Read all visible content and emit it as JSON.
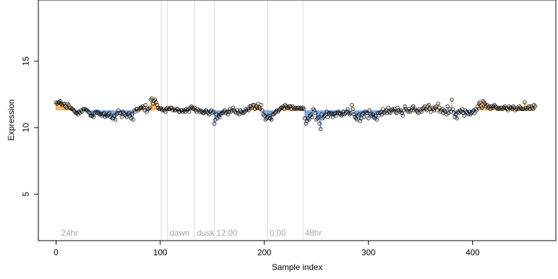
{
  "chart_data": {
    "type": "scatter",
    "xlabel": "Sample index",
    "ylabel": "Expression",
    "xlim": [
      -17,
      480
    ],
    "ylim": [
      1.5,
      19.6
    ],
    "baseline": 11.3,
    "x_ticks": [
      0,
      100,
      200,
      300,
      400
    ],
    "y_ticks": [
      5,
      10,
      15
    ],
    "annotations": [
      {
        "x": 101,
        "label": ""
      },
      {
        "x": 107,
        "label": "dawn"
      },
      {
        "x": 133,
        "label": "dusk"
      },
      {
        "x": 152,
        "label": "12:00"
      },
      {
        "x": 203,
        "label": "0:00"
      },
      {
        "x": 237,
        "label": "48hr"
      },
      {
        "x": 3,
        "label": "24hr"
      }
    ],
    "colors": {
      "above": "#F2B15A",
      "below": "#6CA0DC",
      "point_stroke": "#000000",
      "vline": "#D9D9D9"
    },
    "segments": [
      {
        "start": 0,
        "end": 8,
        "values": [
          11.9,
          11.8,
          11.9,
          11.9,
          12.0,
          11.8,
          11.7,
          11.8,
          11.8
        ]
      },
      {
        "start": 9,
        "end": 30,
        "values": [
          11.6,
          11.5,
          11.8,
          11.7,
          11.5,
          11.5,
          11.4,
          11.4,
          11.3,
          11.2,
          11.1,
          11.1,
          11.0,
          11.2,
          11.1,
          11.3,
          11.2,
          11.4,
          11.4,
          11.4,
          11.3,
          11.3
        ]
      },
      {
        "start": 31,
        "end": 72,
        "values": [
          11.2,
          11.1,
          10.9,
          10.9,
          10.9,
          10.8,
          11.1,
          11.2,
          11.1,
          11.2,
          11.1,
          11.0,
          11.0,
          10.9,
          11.0,
          11.1,
          10.8,
          10.9,
          10.9,
          11.0,
          11.1,
          10.8,
          10.9,
          10.7,
          10.7,
          10.9,
          10.6,
          11.0,
          11.1,
          11.3,
          11.1,
          11.1,
          10.8,
          11.2,
          11.1,
          11.0,
          10.9,
          10.8,
          11.0,
          11.1,
          10.9,
          10.7
        ]
      },
      {
        "start": 73,
        "end": 100,
        "values": [
          11.0,
          10.6,
          11.3,
          11.2,
          11.4,
          11.4,
          11.3,
          11.4,
          11.5,
          11.5,
          11.6,
          11.5,
          11.3,
          11.7,
          11.2,
          11.4,
          11.4,
          11.5,
          12.1,
          12.2,
          11.8,
          12.0,
          12.1,
          11.9,
          11.7,
          11.5,
          11.4,
          11.5
        ]
      },
      {
        "start": 101,
        "end": 145,
        "values": [
          11.4,
          11.3,
          11.4,
          11.3,
          11.2,
          11.4,
          11.5,
          11.4,
          11.4,
          11.5,
          11.5,
          11.3,
          11.4,
          11.3,
          11.3,
          11.4,
          11.4,
          11.2,
          11.2,
          11.3,
          11.3,
          11.2,
          11.3,
          11.2,
          11.4,
          11.3,
          11.4,
          11.2,
          11.5,
          11.6,
          11.5,
          11.4,
          11.5,
          11.3,
          11.2,
          11.4,
          11.3,
          11.2,
          11.3,
          11.2,
          11.1,
          11.1,
          11.2,
          11.3,
          11.2
        ]
      },
      {
        "start": 146,
        "end": 165,
        "values": [
          11.1,
          11.0,
          11.2,
          11.3,
          11.1,
          11.2,
          10.3,
          10.6,
          11.0,
          10.7,
          10.9,
          10.8,
          11.0,
          11.1,
          11.1,
          11.2,
          11.3,
          11.1,
          11.2,
          11.0
        ]
      },
      {
        "start": 166,
        "end": 200,
        "values": [
          11.2,
          11.4,
          11.2,
          11.3,
          11.5,
          11.3,
          11.2,
          11.1,
          11.3,
          11.1,
          11.0,
          11.3,
          11.2,
          11.1,
          11.1,
          11.2,
          11.4,
          11.3,
          11.4,
          11.3,
          11.6,
          11.6,
          11.5,
          11.7,
          11.7,
          11.4,
          11.6,
          11.5,
          11.8,
          11.5,
          11.4,
          11.7,
          11.3,
          11.0,
          10.9
        ]
      },
      {
        "start": 201,
        "end": 238,
        "values": [
          10.6,
          10.7,
          10.8,
          10.9,
          10.7,
          10.7,
          10.6,
          11.0,
          11.0,
          11.1,
          11.2,
          11.3,
          11.2,
          11.3,
          11.4,
          11.5,
          11.5,
          11.6,
          11.4,
          11.7,
          11.6,
          11.5,
          11.5,
          11.6,
          11.6,
          11.4,
          11.6,
          11.5,
          11.4,
          11.5,
          11.4,
          11.5,
          11.5,
          11.4,
          11.5,
          11.4,
          11.5,
          11.4
        ]
      },
      {
        "start": 239,
        "end": 283,
        "values": [
          10.7,
          10.3,
          10.5,
          10.7,
          10.6,
          10.9,
          11.0,
          10.8,
          11.4,
          11.3,
          11.1,
          10.6,
          10.7,
          10.8,
          10.3,
          9.9,
          11.0,
          10.7,
          10.8,
          10.9,
          11.0,
          11.2,
          10.8,
          11.1,
          11.0,
          11.1,
          11.0,
          10.8,
          11.0,
          11.1,
          10.9,
          11.1,
          11.2,
          11.1,
          11.0,
          10.9,
          11.0,
          11.2,
          11.0,
          11.1,
          11.2,
          11.4,
          11.1,
          11.0,
          11.1
        ]
      },
      {
        "start": 284,
        "end": 315,
        "values": [
          11.7,
          11.4,
          11.0,
          10.8,
          10.7,
          10.6,
          10.9,
          11.0,
          10.5,
          10.7,
          11.0,
          11.1,
          10.8,
          11.2,
          11.1,
          11.1,
          10.7,
          11.3,
          11.0,
          10.9,
          11.0,
          10.8,
          10.7,
          10.9,
          10.6,
          11.1,
          10.9,
          11.1,
          11.2,
          11.0,
          11.4,
          11.1
        ]
      },
      {
        "start": 316,
        "end": 360,
        "values": [
          11.2,
          11.3,
          11.1,
          11.5,
          11.2,
          11.1,
          11.3,
          11.4,
          11.3,
          11.4,
          11.2,
          11.1,
          11.5,
          11.3,
          11.2,
          11.3,
          11.1,
          10.9,
          11.3,
          11.6,
          11.4,
          11.3,
          11.2,
          11.4,
          11.2,
          11.3,
          11.5,
          11.6,
          11.3,
          11.4,
          11.3,
          11.2,
          11.1,
          11.4,
          11.3,
          11.2,
          11.4,
          11.5,
          11.6,
          11.4,
          11.3,
          11.6,
          11.7,
          11.4,
          11.2
        ]
      },
      {
        "start": 361,
        "end": 400,
        "values": [
          11.5,
          11.4,
          11.3,
          11.5,
          11.6,
          11.3,
          11.8,
          11.5,
          11.2,
          11.3,
          11.4,
          11.1,
          11.3,
          11.2,
          11.0,
          11.6,
          11.1,
          11.4,
          11.2,
          12.1,
          11.4,
          11.1,
          10.8,
          11.0,
          10.7,
          11.2,
          11.1,
          11.3,
          11.2,
          11.4,
          11.1,
          10.9,
          11.3,
          11.2,
          11.1,
          11.0,
          11.2,
          11.0,
          11.1,
          11.2
        ]
      },
      {
        "start": 401,
        "end": 428,
        "values": [
          11.3,
          11.1,
          11.4,
          11.3,
          11.6,
          11.8,
          11.9,
          11.6,
          11.5,
          12.0,
          11.9,
          11.8,
          11.6,
          11.7,
          11.5,
          11.6,
          11.4,
          11.6,
          11.5,
          11.6,
          11.7,
          11.6,
          11.5,
          11.4,
          11.5,
          11.4,
          11.5,
          11.5
        ]
      },
      {
        "start": 429,
        "end": 460,
        "values": [
          11.4,
          11.5,
          11.6,
          11.5,
          11.4,
          11.3,
          11.6,
          11.5,
          11.5,
          11.4,
          11.6,
          11.5,
          11.3,
          11.4,
          11.5,
          11.4,
          11.6,
          11.5,
          11.4,
          11.4,
          11.4,
          11.9,
          11.5,
          11.4,
          11.5,
          11.6,
          11.4,
          11.6,
          11.5,
          11.4,
          11.7,
          11.6
        ]
      }
    ]
  }
}
